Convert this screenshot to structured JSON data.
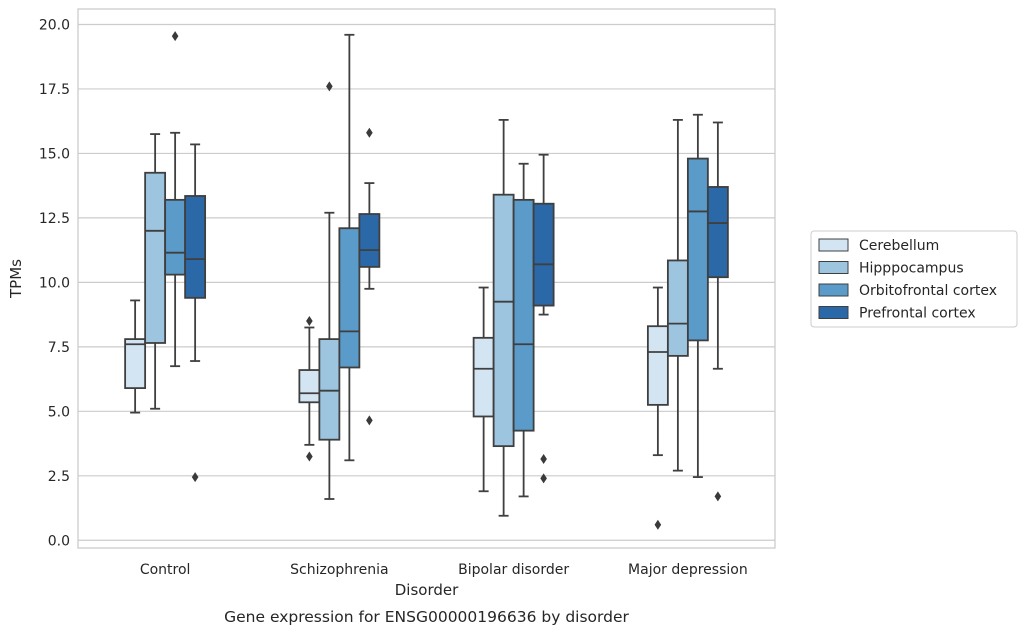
{
  "chart_data": {
    "type": "box",
    "caption": "Gene expression for ENSG00000196636 by disorder",
    "xlabel": "Disorder",
    "ylabel": "TPMs",
    "ylim": [
      -0.3,
      20.6
    ],
    "yticks": [
      "0.0",
      "2.5",
      "5.0",
      "7.5",
      "10.0",
      "12.5",
      "15.0",
      "17.5",
      "20.0"
    ],
    "categories": [
      "Control",
      "Schizophrenia",
      "Bipolar disorder",
      "Major depression"
    ],
    "grid": "horizontal",
    "legend_position": "right",
    "series": [
      {
        "name": "Cerebellum",
        "color": "#d3e4f3",
        "boxes": [
          {
            "whislo": 4.95,
            "q1": 5.9,
            "med": 7.6,
            "q3": 7.8,
            "whishi": 9.3,
            "fliers": []
          },
          {
            "whislo": 3.7,
            "q1": 5.35,
            "med": 5.7,
            "q3": 6.6,
            "whishi": 8.25,
            "fliers": [
              8.5,
              3.25
            ]
          },
          {
            "whislo": 1.9,
            "q1": 4.8,
            "med": 6.65,
            "q3": 7.85,
            "whishi": 9.8,
            "fliers": []
          },
          {
            "whislo": 3.3,
            "q1": 5.25,
            "med": 7.3,
            "q3": 8.3,
            "whishi": 9.8,
            "fliers": [
              0.6
            ]
          }
        ]
      },
      {
        "name": "Hipppocampus",
        "color": "#9dc5df",
        "boxes": [
          {
            "whislo": 5.1,
            "q1": 7.65,
            "med": 12.0,
            "q3": 14.25,
            "whishi": 15.75,
            "fliers": []
          },
          {
            "whislo": 1.6,
            "q1": 3.9,
            "med": 5.8,
            "q3": 7.8,
            "whishi": 12.7,
            "fliers": [
              17.6
            ]
          },
          {
            "whislo": 0.95,
            "q1": 3.65,
            "med": 9.25,
            "q3": 13.4,
            "whishi": 16.3,
            "fliers": []
          },
          {
            "whislo": 2.7,
            "q1": 7.15,
            "med": 8.4,
            "q3": 10.85,
            "whishi": 16.3,
            "fliers": []
          }
        ]
      },
      {
        "name": "Orbitofrontal cortex",
        "color": "#5a9bc9",
        "boxes": [
          {
            "whislo": 6.75,
            "q1": 10.3,
            "med": 11.15,
            "q3": 13.2,
            "whishi": 15.8,
            "fliers": [
              19.55
            ]
          },
          {
            "whislo": 3.1,
            "q1": 6.7,
            "med": 8.1,
            "q3": 12.1,
            "whishi": 19.6,
            "fliers": []
          },
          {
            "whislo": 1.7,
            "q1": 4.25,
            "med": 7.6,
            "q3": 13.2,
            "whishi": 14.6,
            "fliers": []
          },
          {
            "whislo": 2.45,
            "q1": 7.75,
            "med": 12.75,
            "q3": 14.8,
            "whishi": 16.5,
            "fliers": []
          }
        ]
      },
      {
        "name": "Prefrontal cortex",
        "color": "#2a68a7",
        "boxes": [
          {
            "whislo": 6.95,
            "q1": 9.4,
            "med": 10.9,
            "q3": 13.35,
            "whishi": 15.35,
            "fliers": [
              2.45
            ]
          },
          {
            "whislo": 9.75,
            "q1": 10.6,
            "med": 11.25,
            "q3": 12.65,
            "whishi": 13.85,
            "fliers": [
              15.8,
              4.65
            ]
          },
          {
            "whislo": 8.75,
            "q1": 9.1,
            "med": 10.7,
            "q3": 13.05,
            "whishi": 14.95,
            "fliers": [
              3.15,
              2.4
            ]
          },
          {
            "whislo": 6.65,
            "q1": 10.2,
            "med": 12.3,
            "q3": 13.7,
            "whishi": 16.2,
            "fliers": [
              1.7
            ]
          }
        ]
      }
    ]
  }
}
